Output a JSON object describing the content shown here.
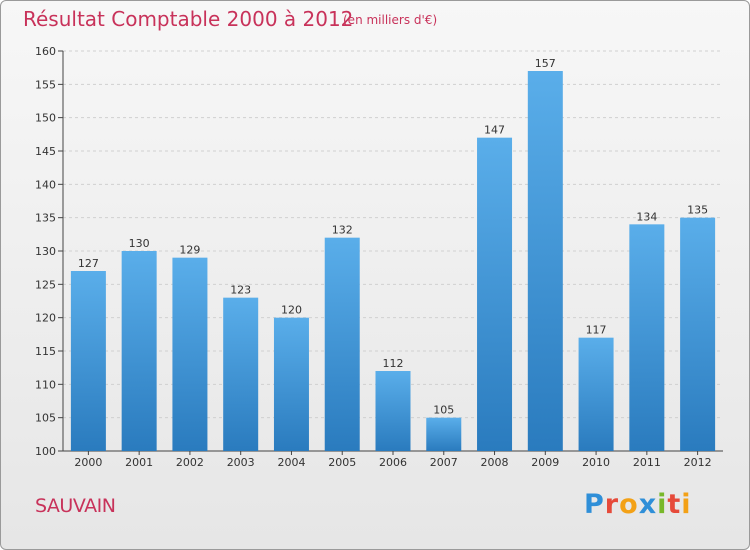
{
  "header": {
    "title": "Résultat Comptable 2000 à 2012",
    "unit_note": "(en milliers d'€)"
  },
  "footer": {
    "commune": "SAUVAIN",
    "logo_text": "Proxiti"
  },
  "colors": {
    "title": "#c8325a",
    "bar_light": "#5aaeea",
    "bar_dark": "#2a7bbe",
    "grid": "#d0d0d0"
  },
  "chart_data": {
    "type": "bar",
    "title": "Résultat Comptable 2000 à 2012",
    "subtitle": "(en milliers d'€)",
    "xlabel": "",
    "ylabel": "",
    "categories": [
      "2000",
      "2001",
      "2002",
      "2003",
      "2004",
      "2005",
      "2006",
      "2007",
      "2008",
      "2009",
      "2010",
      "2011",
      "2012"
    ],
    "values": [
      127,
      130,
      129,
      123,
      120,
      132,
      112,
      105,
      147,
      157,
      117,
      134,
      135
    ],
    "ylim": [
      100,
      160
    ],
    "yticks": [
      100,
      105,
      110,
      115,
      120,
      125,
      130,
      135,
      140,
      145,
      150,
      155,
      160
    ],
    "grid": true,
    "legend": "none"
  }
}
